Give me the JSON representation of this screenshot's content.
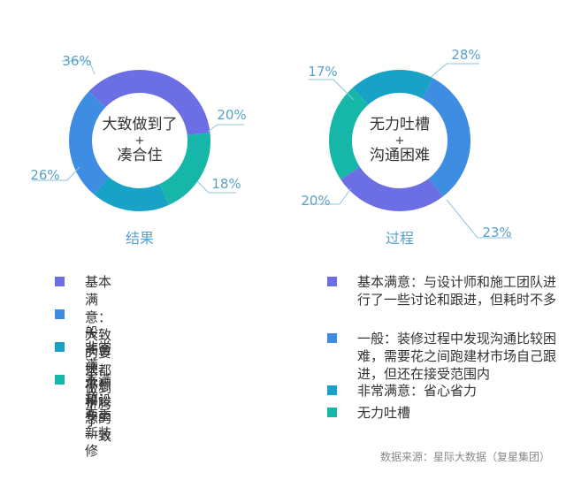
{
  "colors": {
    "purple": "#6b6fe3",
    "blue": "#3f8de3",
    "cyan": "#17a2c6",
    "teal": "#16b6a8",
    "label": "#5aa1c8",
    "leader": "#8fc3db",
    "center_text": "#333333"
  },
  "chart_data": [
    {
      "type": "pie",
      "variant": "donut",
      "center_lines": [
        "大致做到了",
        "+",
        "凑合住"
      ],
      "caption": "结果",
      "slices": [
        {
          "label": "基本满意",
          "value": 36,
          "display": "36%",
          "color": "#6b6fe3"
        },
        {
          "label": "不满意",
          "value": 20,
          "display": "20%",
          "color": "#16b6a8"
        },
        {
          "label": "非常满意",
          "value": 18,
          "display": "18%",
          "color": "#17a2c6"
        },
        {
          "label": "一般",
          "value": 26,
          "display": "26%",
          "color": "#3f8de3"
        }
      ]
    },
    {
      "type": "pie",
      "variant": "donut",
      "center_lines": [
        "无力吐槽",
        "+",
        "沟通困难"
      ],
      "caption": "过程",
      "slices": [
        {
          "label": "一般",
          "value": 28,
          "display": "28%",
          "color": "#3f8de3"
        },
        {
          "label": "基本满意",
          "value": 23,
          "display": "23%",
          "color": "#6b6fe3"
        },
        {
          "label": "无力吐槽",
          "value": 20,
          "display": "20%",
          "color": "#16b6a8"
        },
        {
          "label": "非常满意",
          "value": 17,
          "display": "17%",
          "color": "#17a2c6"
        }
      ]
    }
  ],
  "legend_left": [
    {
      "text": "基本满意：大致的要求都做到了",
      "color": "#6b6fe3"
    },
    {
      "text": "一般：凑合住，不想折腾了",
      "color": "#3f8de3"
    },
    {
      "text": "非常满意：和设想的一致",
      "color": "#17a2c6"
    },
    {
      "text": "不满意：要重新装修",
      "color": "#16b6a8"
    }
  ],
  "legend_right": [
    {
      "text": "基本满意：与设计师和施工团队进行了一些讨论和跟进，但耗时不多",
      "color": "#6b6fe3"
    },
    {
      "text": "一般：装修过程中发现沟通比较困难，需要花之间跑建材市场自己跟进，但还在接受范围内",
      "color": "#3f8de3"
    },
    {
      "text": "非常满意：省心省力",
      "color": "#17a2c6"
    },
    {
      "text": "无力吐槽",
      "color": "#16b6a8"
    }
  ],
  "source": "数据来源：星际大数据（复星集团）"
}
